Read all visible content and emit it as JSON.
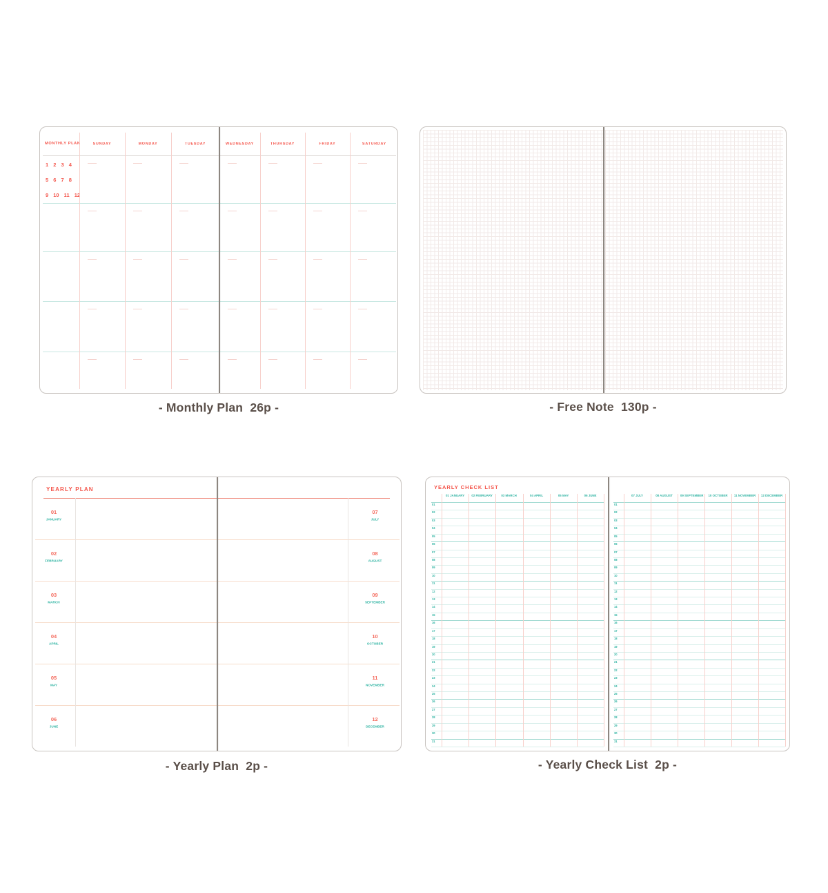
{
  "colors": {
    "red_text": "#f4544a",
    "teal_text": "#2eb3a2",
    "pink_line": "#f7cfca",
    "teal_line": "#c6e7e1",
    "teal_line_strong": "#9ed9d0",
    "grey_line": "#ddd8d5",
    "peach_line": "#f7dcca",
    "faint_grey_line": "#e8e4e1",
    "card_border": "#c7c2be",
    "spine": "#8d8680",
    "caption_text": "#5a4f49"
  },
  "monthly_plan": {
    "title": "MONTHLY PLAN",
    "day_headers": [
      "SUNDAY",
      "MONDAY",
      "TUESDAY",
      "WEDNESDAY",
      "THURSDAY",
      "FRIDAY",
      "SATURDAY"
    ],
    "month_number_rows": [
      "1 2 3 4",
      "5 6 7 8",
      "9 10 11 12"
    ],
    "week_rows": 5,
    "caption": "- Monthly Plan  26p -"
  },
  "free_note": {
    "caption": "- Free Note  130p -"
  },
  "yearly_plan": {
    "title": "YEARLY PLAN",
    "months": [
      {
        "num": "01",
        "name": "JANUARY"
      },
      {
        "num": "02",
        "name": "FEBRUARY"
      },
      {
        "num": "03",
        "name": "MARCH"
      },
      {
        "num": "04",
        "name": "APRIL"
      },
      {
        "num": "05",
        "name": "MAY"
      },
      {
        "num": "06",
        "name": "JUNE"
      },
      {
        "num": "07",
        "name": "JULY"
      },
      {
        "num": "08",
        "name": "AUGUST"
      },
      {
        "num": "09",
        "name": "SEPTEMBER"
      },
      {
        "num": "10",
        "name": "OCTOBER"
      },
      {
        "num": "11",
        "name": "NOVEMBER"
      },
      {
        "num": "12",
        "name": "DECEMBER"
      }
    ],
    "caption": "- Yearly Plan  2p -"
  },
  "yearly_checklist": {
    "title": "YEARLY CHECK LIST",
    "month_headers": [
      "01 JANUARY",
      "02 FEBRUARY",
      "03 MARCH",
      "04 APRIL",
      "05 MAY",
      "06 JUNE",
      "07 JULY",
      "08 AUGUST",
      "09 SEPTEMBER",
      "10 OCTOBER",
      "11 NOVEMBER",
      "12 DECEMBER"
    ],
    "row_count": 31,
    "row_numbers": [
      "01",
      "02",
      "03",
      "04",
      "05",
      "06",
      "07",
      "08",
      "09",
      "10",
      "11",
      "12",
      "13",
      "14",
      "15",
      "16",
      "17",
      "18",
      "19",
      "20",
      "21",
      "22",
      "23",
      "24",
      "25",
      "26",
      "27",
      "28",
      "29",
      "30",
      "31"
    ],
    "caption": "- Yearly Check List  2p -"
  }
}
